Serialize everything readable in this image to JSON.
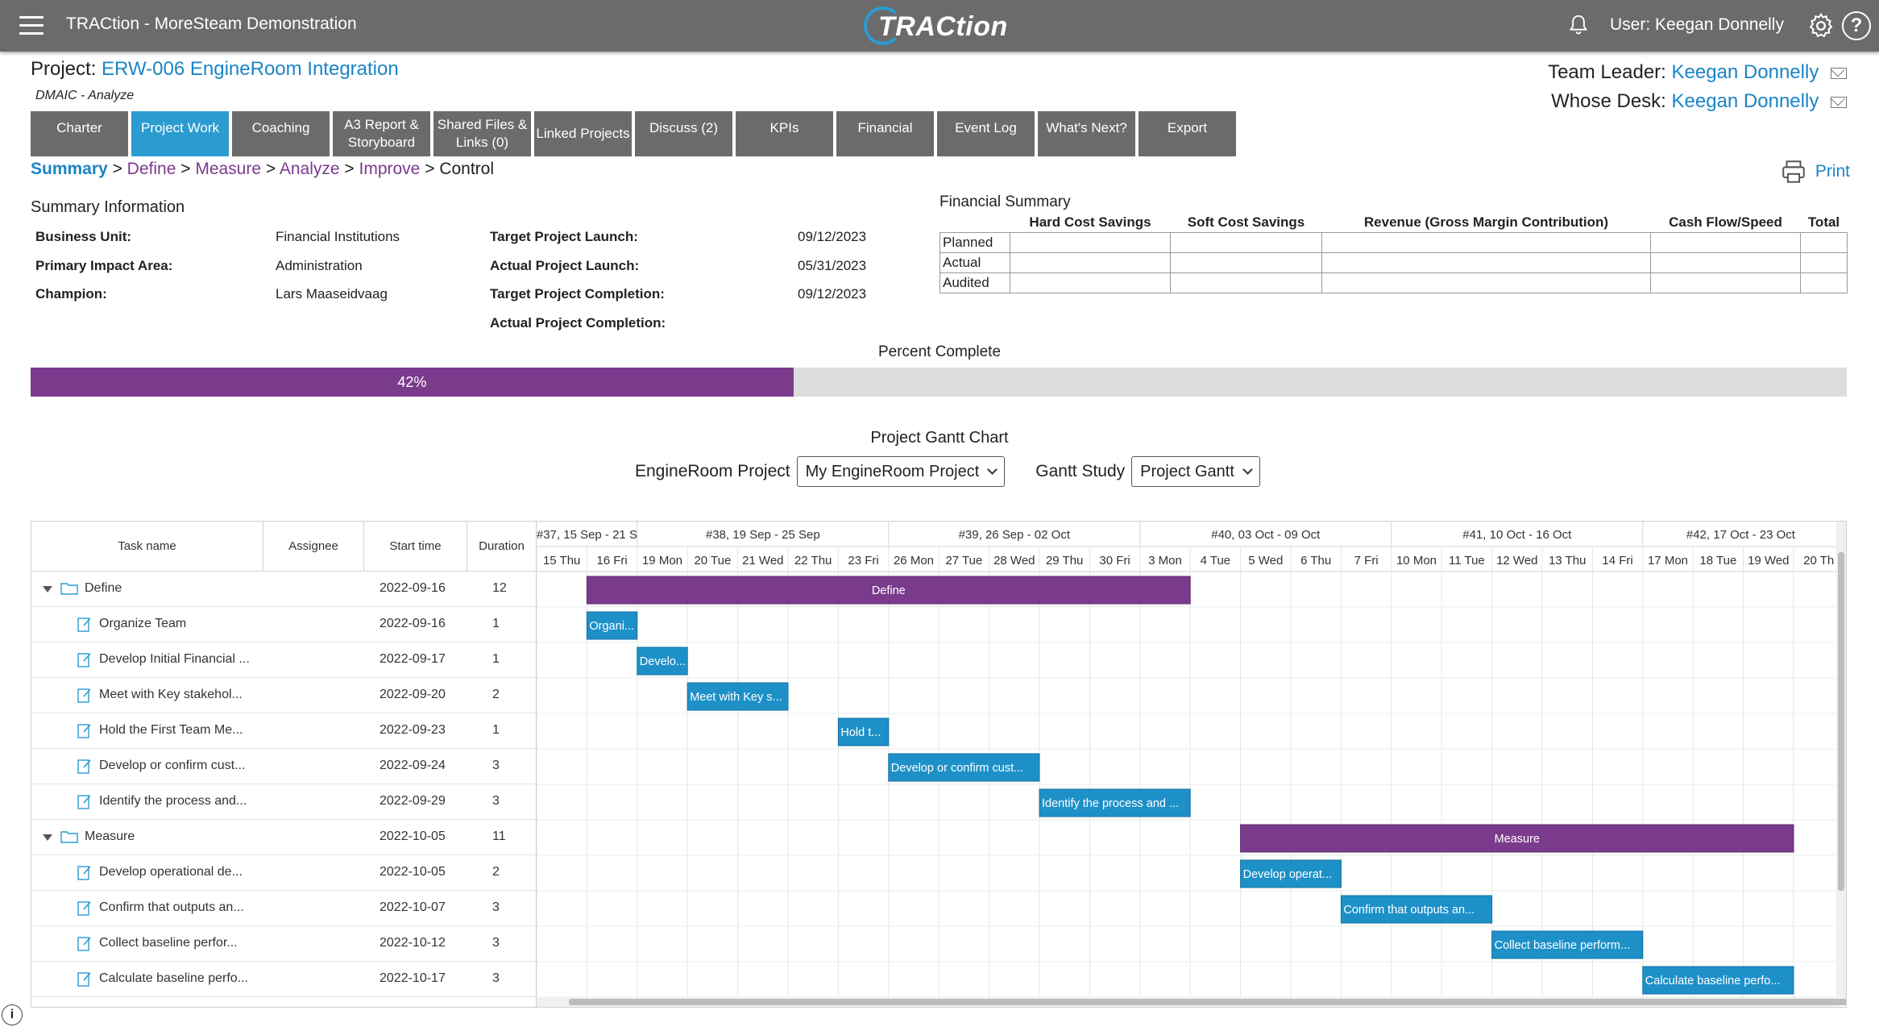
{
  "app": {
    "title": "TRACtion - MoreSteam Demonstration",
    "logo_text": "TRACtion",
    "user_label": "User: Keegan Donnelly"
  },
  "project": {
    "label": "Project:",
    "name": "ERW-006 EngineRoom Integration",
    "phase": "DMAIC - Analyze",
    "team_leader_label": "Team Leader:",
    "team_leader": "Keegan Donnelly",
    "whose_desk_label": "Whose Desk:",
    "whose_desk": "Keegan Donnelly"
  },
  "tabs": [
    {
      "label": "Charter"
    },
    {
      "label": "Project Work"
    },
    {
      "label": "Coaching"
    },
    {
      "label": "A3 Report & Storyboard"
    },
    {
      "label": "Shared Files & Links (0)"
    },
    {
      "label": "Linked Projects"
    },
    {
      "label": "Discuss (2)"
    },
    {
      "label": "KPIs"
    },
    {
      "label": "Financial"
    },
    {
      "label": "Event Log"
    },
    {
      "label": "What's Next?"
    },
    {
      "label": "Export"
    }
  ],
  "breadcrumb": {
    "summary": "Summary",
    "define": "Define",
    "measure": "Measure",
    "analyze": "Analyze",
    "improve": "Improve",
    "control": "Control",
    "sep": ">"
  },
  "print_label": "Print",
  "summary_info": {
    "title": "Summary Information",
    "business_unit_label": "Business Unit:",
    "business_unit": "Financial Institutions",
    "primary_impact_label": "Primary Impact Area:",
    "primary_impact": "Administration",
    "champion_label": "Champion:",
    "champion": "Lars Maaseidvaag",
    "target_launch_label": "Target Project Launch:",
    "target_launch": "09/12/2023",
    "actual_launch_label": "Actual Project Launch:",
    "actual_launch": "05/31/2023",
    "target_completion_label": "Target Project Completion:",
    "target_completion": "09/12/2023",
    "actual_completion_label": "Actual Project Completion:"
  },
  "financial": {
    "title": "Financial Summary",
    "columns": [
      "Hard Cost Savings",
      "Soft Cost Savings",
      "Revenue (Gross Margin Contribution)",
      "Cash Flow/Speed",
      "Total"
    ],
    "rows": [
      "Planned",
      "Actual",
      "Audited"
    ]
  },
  "percent": {
    "title": "Percent Complete",
    "value": 42,
    "label": "42%"
  },
  "gantt": {
    "title": "Project Gantt Chart",
    "project_label": "EngineRoom Project",
    "project_value": "My EngineRoom Project",
    "study_label": "Gantt Study",
    "study_value": "Project Gantt",
    "columns": {
      "task": "Task name",
      "assignee": "Assignee",
      "start": "Start time",
      "duration": "Duration"
    },
    "weeks": [
      "#37, 15 Sep - 21 S",
      "#38, 19 Sep - 25 Sep",
      "#39, 26 Sep - 02 Oct",
      "#40, 03 Oct - 09 Oct",
      "#41, 10 Oct - 16 Oct",
      "#42, 17 Oct - 23 Oct"
    ],
    "days": [
      "15 Thu",
      "16 Fri",
      "19 Mon",
      "20 Tue",
      "21 Wed",
      "22 Thu",
      "23 Fri",
      "26 Mon",
      "27 Tue",
      "28 Wed",
      "29 Thu",
      "30 Fri",
      "3 Mon",
      "4 Tue",
      "5 Wed",
      "6 Thu",
      "7 Fri",
      "10 Mon",
      "11 Tue",
      "12 Wed",
      "13 Thu",
      "14 Fri",
      "17 Mon",
      "18 Tue",
      "19 Wed",
      "20 Th"
    ],
    "tasks": [
      {
        "name": "Define",
        "start": "2022-09-16",
        "duration": "12",
        "type": "phase",
        "bar_label": "Define",
        "start_col": 1,
        "span": 12
      },
      {
        "name": "Organize Team",
        "start": "2022-09-16",
        "duration": "1",
        "type": "task",
        "bar_label": "Organi...",
        "start_col": 1,
        "span": 1
      },
      {
        "name": "Develop Initial Financial ...",
        "start": "2022-09-17",
        "duration": "1",
        "type": "task",
        "bar_label": "Develo...",
        "start_col": 2,
        "span": 1
      },
      {
        "name": "Meet with Key stakehol...",
        "start": "2022-09-20",
        "duration": "2",
        "type": "task",
        "bar_label": "Meet with Key s...",
        "start_col": 3,
        "span": 2
      },
      {
        "name": "Hold the First Team Me...",
        "start": "2022-09-23",
        "duration": "1",
        "type": "task",
        "bar_label": "Hold t...",
        "start_col": 6,
        "span": 1
      },
      {
        "name": "Develop or confirm cust...",
        "start": "2022-09-24",
        "duration": "3",
        "type": "task",
        "bar_label": "Develop or confirm cust...",
        "start_col": 7,
        "span": 3
      },
      {
        "name": "Identify the process and...",
        "start": "2022-09-29",
        "duration": "3",
        "type": "task",
        "bar_label": "Identify the process and ...",
        "start_col": 10,
        "span": 3
      },
      {
        "name": "Measure",
        "start": "2022-10-05",
        "duration": "11",
        "type": "phase",
        "bar_label": "Measure",
        "start_col": 14,
        "span": 11
      },
      {
        "name": "Develop operational de...",
        "start": "2022-10-05",
        "duration": "2",
        "type": "task",
        "bar_label": "Develop operat...",
        "start_col": 14,
        "span": 2
      },
      {
        "name": "Confirm that outputs an...",
        "start": "2022-10-07",
        "duration": "3",
        "type": "task",
        "bar_label": "Confirm that outputs an...",
        "start_col": 16,
        "span": 3
      },
      {
        "name": "Collect baseline perfor...",
        "start": "2022-10-12",
        "duration": "3",
        "type": "task",
        "bar_label": "Collect baseline perform...",
        "start_col": 19,
        "span": 3
      },
      {
        "name": "Calculate baseline perfo...",
        "start": "2022-10-17",
        "duration": "3",
        "type": "task",
        "bar_label": "Calculate baseline perfo...",
        "start_col": 22,
        "span": 3
      }
    ]
  },
  "colors": {
    "topbar": "#6b6b6b",
    "accent_blue": "#2b9bd0",
    "link_blue": "#1b84c6",
    "purple": "#7b3b8c",
    "task_bar": "#1e90c8"
  },
  "icons": [
    "menu-icon",
    "bell-icon",
    "gear-icon",
    "help-icon",
    "mail-icon",
    "printer-icon",
    "folder-icon",
    "task-icon",
    "info-icon"
  ]
}
